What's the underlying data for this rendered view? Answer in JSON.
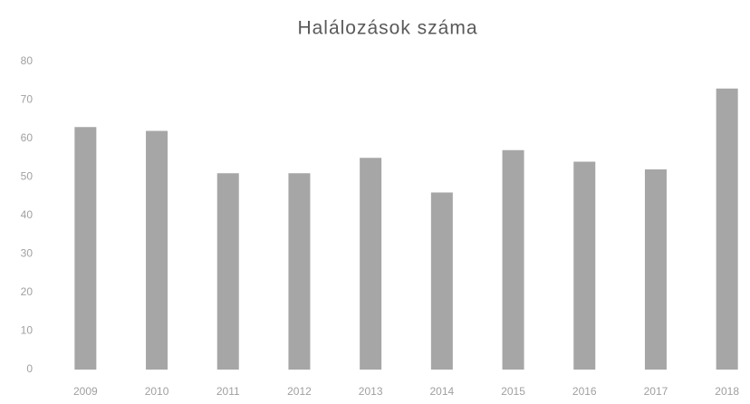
{
  "chart_data": {
    "type": "bar",
    "title": "Halálozások száma",
    "categories": [
      "2009",
      "2010",
      "2011",
      "2012",
      "2013",
      "2014",
      "2015",
      "2016",
      "2017",
      "2018"
    ],
    "values": [
      63,
      62,
      51,
      51,
      55,
      46,
      57,
      54,
      52,
      73
    ],
    "color": "#a6a6a6",
    "ylim": [
      0,
      80
    ],
    "yticks": [
      0,
      10,
      20,
      30,
      40,
      50,
      60,
      70,
      80
    ],
    "grid": false
  }
}
